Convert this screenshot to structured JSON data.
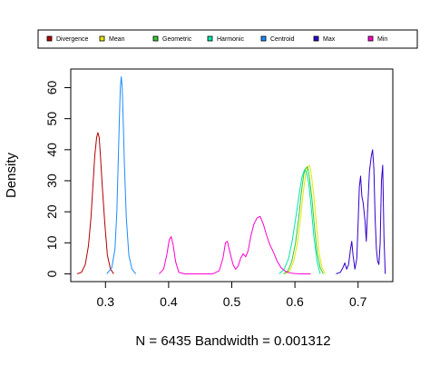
{
  "chart_data": {
    "type": "line",
    "title": "",
    "xlabel": "N = 6435   Bandwidth = 0.001312",
    "ylabel": "Density",
    "xlim": [
      0.245,
      0.755
    ],
    "ylim": [
      -2.5,
      66
    ],
    "x_ticks": [
      0.3,
      0.4,
      0.5,
      0.6,
      0.7
    ],
    "x_tick_labels": [
      "0.3",
      "0.4",
      "0.5",
      "0.6",
      "0.7"
    ],
    "y_ticks": [
      0,
      10,
      20,
      30,
      40,
      50,
      60
    ],
    "y_tick_labels": [
      "0",
      "10",
      "20",
      "30",
      "40",
      "50",
      "60"
    ],
    "legend_position": "top",
    "grid": false,
    "series": [
      {
        "name": "Divergence",
        "color": "#b30000",
        "x": [
          0.255,
          0.262,
          0.268,
          0.273,
          0.277,
          0.28,
          0.283,
          0.286,
          0.288,
          0.29,
          0.292,
          0.295,
          0.299,
          0.303,
          0.308,
          0.313
        ],
        "y": [
          0,
          0.5,
          3,
          9,
          18,
          28,
          38,
          44,
          45.5,
          44,
          38,
          28,
          16,
          6,
          1.5,
          0
        ]
      },
      {
        "name": "Mean",
        "color": "#e6e600",
        "x": [
          0.585,
          0.592,
          0.598,
          0.604,
          0.609,
          0.613,
          0.617,
          0.62,
          0.623,
          0.626,
          0.63,
          0.634,
          0.638,
          0.643,
          0.648
        ],
        "y": [
          0,
          1,
          4,
          10,
          18,
          26,
          32,
          34.5,
          35,
          32,
          25,
          16,
          7,
          2,
          0
        ]
      },
      {
        "name": "Geometric",
        "color": "#33cc33",
        "x": [
          0.582,
          0.589,
          0.595,
          0.601,
          0.606,
          0.61,
          0.614,
          0.617,
          0.62,
          0.623,
          0.627,
          0.631,
          0.635,
          0.64,
          0.645
        ],
        "y": [
          0,
          1,
          4,
          10,
          18,
          26,
          32,
          34,
          34.5,
          31,
          24,
          15,
          7,
          2,
          0
        ]
      },
      {
        "name": "Harmonic",
        "color": "#00e6a8",
        "x": [
          0.575,
          0.583,
          0.59,
          0.596,
          0.602,
          0.607,
          0.611,
          0.615,
          0.618,
          0.622,
          0.626,
          0.63,
          0.635,
          0.64
        ],
        "y": [
          0,
          1.5,
          5,
          11,
          19,
          26,
          31,
          33.5,
          33,
          29,
          21,
          12,
          4,
          0
        ]
      },
      {
        "name": "Centroid",
        "color": "#1a8cff",
        "x": [
          0.302,
          0.31,
          0.315,
          0.318,
          0.32,
          0.322,
          0.3235,
          0.325,
          0.3265,
          0.328,
          0.33,
          0.333,
          0.337,
          0.342,
          0.348
        ],
        "y": [
          0,
          2,
          8,
          20,
          35,
          50,
          60,
          63.5,
          60,
          50,
          35,
          18,
          6,
          1.5,
          0
        ]
      },
      {
        "name": "Max",
        "color": "#3300cc",
        "x": [
          0.665,
          0.672,
          0.676,
          0.679,
          0.682,
          0.685,
          0.688,
          0.69,
          0.692,
          0.695,
          0.698,
          0.7,
          0.702,
          0.704,
          0.706,
          0.708,
          0.711,
          0.713,
          0.715,
          0.718,
          0.721,
          0.723,
          0.725,
          0.727,
          0.729,
          0.731,
          0.733,
          0.735,
          0.737,
          0.739,
          0.741,
          0.743
        ],
        "y": [
          0,
          0.5,
          2,
          3.5,
          1.5,
          3,
          8,
          10.5,
          6,
          1.5,
          5,
          16,
          28,
          31.5,
          25,
          23,
          17,
          10.5,
          20,
          33,
          38,
          40,
          34,
          18,
          8,
          4,
          3,
          10,
          30,
          35,
          12,
          0
        ]
      },
      {
        "name": "Min",
        "color": "#ff00cc",
        "x": [
          0.385,
          0.392,
          0.397,
          0.401,
          0.404,
          0.407,
          0.411,
          0.416,
          0.425,
          0.45,
          0.47,
          0.48,
          0.486,
          0.49,
          0.493,
          0.497,
          0.502,
          0.506,
          0.51,
          0.514,
          0.518,
          0.522,
          0.526,
          0.53,
          0.535,
          0.54,
          0.545,
          0.55,
          0.555,
          0.56,
          0.566,
          0.572,
          0.578,
          0.585,
          0.592,
          0.6,
          0.61,
          0.625
        ],
        "y": [
          0,
          1.5,
          6,
          11,
          12,
          9.5,
          4,
          0.5,
          0,
          0,
          0,
          1,
          5,
          10,
          10.5,
          7,
          3,
          1.5,
          2.5,
          5,
          6.5,
          5.5,
          7.5,
          12,
          16,
          18,
          18.5,
          16,
          12.5,
          9.5,
          7,
          4,
          2,
          0.8,
          0.3,
          0.1,
          0,
          0
        ]
      }
    ]
  }
}
